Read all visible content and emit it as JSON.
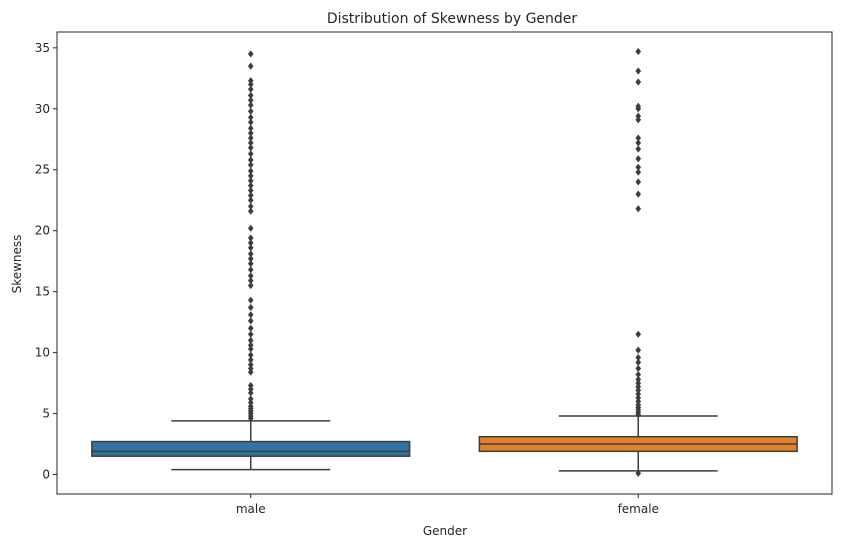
{
  "chart_data": {
    "type": "box",
    "title": "Distribution of Skewness by Gender",
    "xlabel": "Gender",
    "ylabel": "Skewness",
    "categories": [
      "male",
      "female"
    ],
    "ylim": [
      -1.6,
      36.3
    ],
    "yticks": [
      0,
      5,
      10,
      15,
      20,
      25,
      30,
      35
    ],
    "grid": false,
    "series": [
      {
        "category": "male",
        "color": "#3274a1",
        "whisker_low": 0.4,
        "q1": 1.5,
        "median": 1.9,
        "q3": 2.7,
        "whisker_high": 4.4,
        "outliers": [
          4.6,
          4.8,
          5.0,
          5.2,
          5.4,
          5.6,
          5.9,
          6.2,
          6.7,
          7.0,
          7.3,
          8.4,
          8.7,
          9.0,
          9.4,
          9.8,
          10.3,
          10.6,
          11.0,
          11.5,
          12.0,
          12.6,
          13.1,
          13.7,
          14.3,
          15.5,
          15.9,
          16.3,
          16.8,
          17.3,
          17.7,
          18.1,
          18.6,
          19.0,
          19.4,
          20.2,
          21.6,
          22.0,
          22.5,
          22.9,
          23.3,
          23.7,
          24.1,
          24.5,
          24.9,
          25.4,
          25.8,
          26.3,
          26.8,
          27.2,
          27.6,
          28.0,
          28.4,
          28.9,
          29.3,
          29.8,
          30.3,
          30.7,
          31.1,
          31.6,
          32.0,
          32.3,
          33.5,
          34.5
        ]
      },
      {
        "category": "female",
        "color": "#e1812c",
        "whisker_low": 0.3,
        "q1": 1.9,
        "median": 2.5,
        "q3": 3.1,
        "whisker_high": 4.8,
        "outliers": [
          0.1,
          4.9,
          5.1,
          5.3,
          5.5,
          5.7,
          6.0,
          6.3,
          6.6,
          6.9,
          7.2,
          7.5,
          7.8,
          8.2,
          8.7,
          9.2,
          9.6,
          10.2,
          11.5,
          21.8,
          23.0,
          24.0,
          24.8,
          25.2,
          25.9,
          26.7,
          27.2,
          27.6,
          29.1,
          29.4,
          30.0,
          30.2,
          32.2,
          33.1,
          34.7
        ]
      }
    ]
  }
}
